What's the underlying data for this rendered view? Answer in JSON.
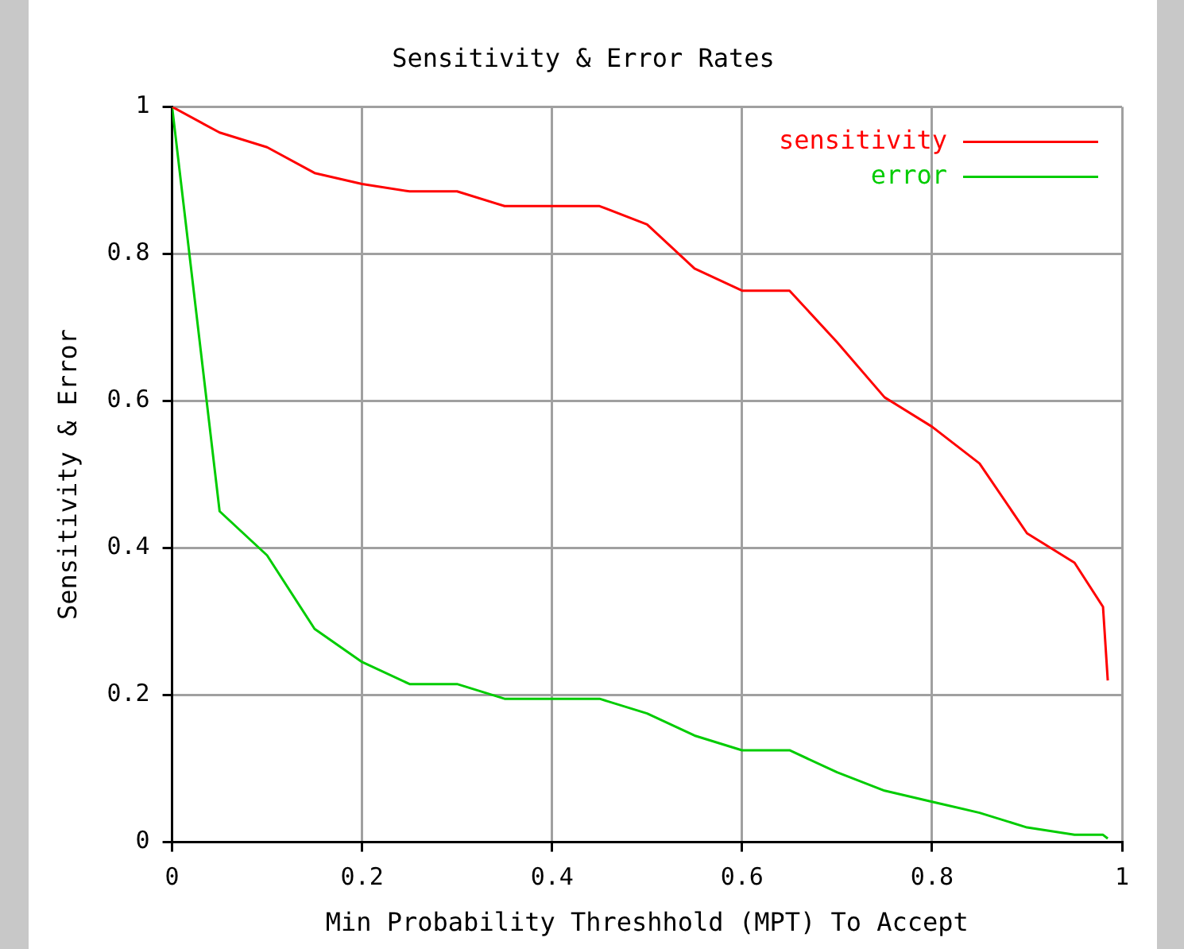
{
  "chart_data": {
    "type": "line",
    "title": "Sensitivity & Error Rates",
    "xlabel": "Min Probability Threshhold (MPT) To Accept",
    "ylabel": "Sensitivity & Error",
    "x": [
      0,
      0.05,
      0.1,
      0.15,
      0.2,
      0.25,
      0.3,
      0.35,
      0.4,
      0.45,
      0.5,
      0.55,
      0.6,
      0.65,
      0.7,
      0.75,
      0.8,
      0.85,
      0.9,
      0.95,
      0.98,
      0.985
    ],
    "series": [
      {
        "name": "sensitivity",
        "color": "#ff0000",
        "values": [
          1,
          0.965,
          0.945,
          0.91,
          0.895,
          0.885,
          0.885,
          0.865,
          0.865,
          0.865,
          0.84,
          0.78,
          0.75,
          0.75,
          0.68,
          0.605,
          0.565,
          0.515,
          0.42,
          0.38,
          0.32,
          0.22
        ]
      },
      {
        "name": "error",
        "color": "#00cc00",
        "values": [
          1,
          0.45,
          0.39,
          0.29,
          0.245,
          0.215,
          0.215,
          0.195,
          0.195,
          0.195,
          0.175,
          0.145,
          0.125,
          0.125,
          0.095,
          0.07,
          0.055,
          0.04,
          0.02,
          0.01,
          0.01,
          0.005
        ]
      }
    ],
    "xlim": [
      0,
      1
    ],
    "xticks": [
      0,
      0.2,
      0.4,
      0.6,
      0.8,
      1
    ],
    "ylim": [
      0,
      1
    ],
    "yticks": [
      0,
      0.2,
      0.4,
      0.6,
      0.8,
      1
    ],
    "grid": true,
    "legend": "top right",
    "marker": "none",
    "line_style": "solid"
  }
}
